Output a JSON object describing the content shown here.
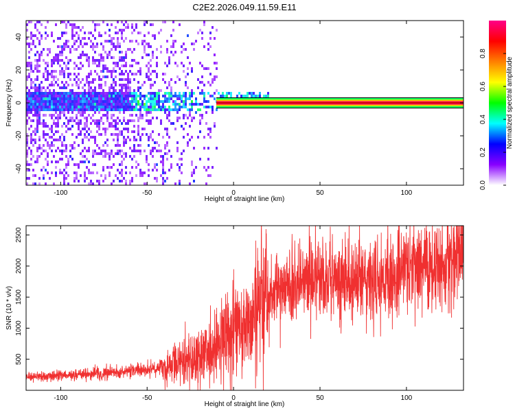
{
  "page": {
    "title": "C2E2.2026.049.11.59.E11"
  },
  "chart_data": [
    {
      "type": "heatmap",
      "xlabel": "Height of straight line (km)",
      "ylabel": "Frequency (Hz)",
      "xlim": [
        -120,
        133
      ],
      "ylim": [
        -50,
        50
      ],
      "x_ticks": [
        -100,
        -50,
        0,
        50,
        100
      ],
      "y_ticks": [
        -40,
        -20,
        0,
        20,
        40
      ],
      "grid": false,
      "colorbar": {
        "label": "Normalized spectral amplitude",
        "range": [
          0,
          1
        ],
        "ticks": [
          0.0,
          0.2,
          0.4,
          0.6,
          0.8
        ],
        "tick_labels": [
          "0.0",
          "0.2",
          "0.4",
          "0.6",
          "0.8"
        ],
        "colormap": [
          "#ffffff",
          "#8800ff",
          "#0000ff",
          "#00ffff",
          "#00ff00",
          "#ffff00",
          "#ff8000",
          "#ff0000",
          "#ff0088"
        ]
      },
      "features": {
        "narrow_band_center_hz": 0,
        "narrow_band_start_km": -10,
        "broad_scatter_until_km": 20,
        "peak_color": "#d00000"
      }
    },
    {
      "type": "line",
      "xlabel": "Height of straight line (km)",
      "ylabel": "SNR (10 * v/v)",
      "xlim": [
        -120,
        133
      ],
      "ylim": [
        0,
        2650
      ],
      "x_ticks": [
        -100,
        -50,
        0,
        50,
        100
      ],
      "y_ticks": [
        500,
        1000,
        1500,
        2000,
        2500
      ],
      "grid": false,
      "series": [
        {
          "color": "#f03030",
          "trend": {
            "x": [
              -120,
              -100,
              -80,
              -60,
              -40,
              -25,
              -15,
              -10,
              -5,
              0,
              5,
              10,
              15,
              20,
              30,
              40,
              50,
              60,
              70,
              80,
              90,
              100,
              110,
              120,
              133
            ],
            "y": [
              210,
              240,
              270,
              310,
              390,
              480,
              580,
              780,
              950,
              1050,
              1100,
              900,
              1350,
              1500,
              1650,
              1750,
              1800,
              1820,
              1800,
              1800,
              1850,
              1950,
              2000,
              2050,
              2200
            ]
          }
        }
      ]
    }
  ]
}
